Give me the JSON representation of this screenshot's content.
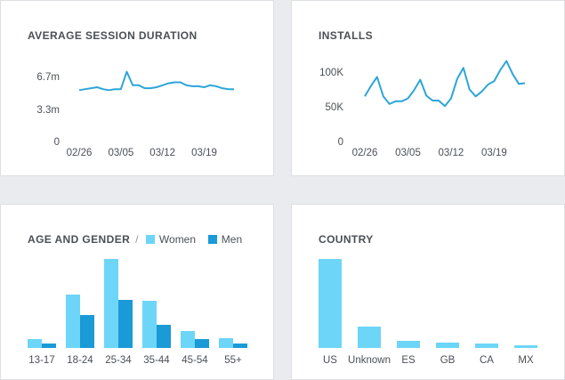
{
  "colors": {
    "line": "#2da5d8",
    "women": "#6dd5f8",
    "men": "#1a9ad6"
  },
  "chart_data": [
    {
      "id": "session",
      "type": "line",
      "title": "AVERAGE SESSION DURATION",
      "y_tick_labels": [
        "6.7m",
        "3.3m",
        "0"
      ],
      "y_ticks": [
        6.7,
        3.3,
        0
      ],
      "ylim": [
        0,
        6.7
      ],
      "x_tick_labels": [
        "02/26",
        "03/05",
        "03/12",
        "03/19"
      ],
      "x_tick_index": [
        0,
        7,
        14,
        21
      ],
      "values": [
        5.3,
        5.4,
        5.5,
        5.6,
        5.4,
        5.3,
        5.4,
        5.4,
        7.2,
        5.8,
        5.8,
        5.5,
        5.5,
        5.6,
        5.8,
        6.0,
        6.1,
        6.1,
        5.8,
        5.7,
        5.7,
        5.6,
        5.8,
        5.7,
        5.5,
        5.4,
        5.4
      ]
    },
    {
      "id": "installs",
      "type": "line",
      "title": "INSTALLS",
      "y_tick_labels": [
        "100K",
        "50K",
        "0"
      ],
      "y_ticks": [
        100000,
        50000,
        0
      ],
      "ylim": [
        0,
        100000
      ],
      "x_tick_labels": [
        "02/26",
        "03/05",
        "03/12",
        "03/19"
      ],
      "x_tick_index": [
        0,
        7,
        14,
        21
      ],
      "values": [
        65000,
        80000,
        93000,
        65000,
        54000,
        58000,
        58000,
        62000,
        74000,
        89000,
        66000,
        59000,
        59000,
        51000,
        62000,
        90000,
        106000,
        75000,
        65000,
        72000,
        82000,
        87000,
        103000,
        116000,
        97000,
        83000,
        84000
      ]
    },
    {
      "id": "age",
      "type": "bar",
      "title": "AGE AND GENDER",
      "categories": [
        "13-17",
        "18-24",
        "25-34",
        "35-44",
        "45-54",
        "55+"
      ],
      "ylim": [
        0,
        100
      ],
      "series": [
        {
          "name": "Women",
          "values": [
            10,
            60,
            100,
            53,
            19,
            11
          ]
        },
        {
          "name": "Men",
          "values": [
            5,
            37,
            54,
            26,
            10,
            5
          ]
        }
      ]
    },
    {
      "id": "country",
      "type": "bar",
      "title": "COUNTRY",
      "categories": [
        "US",
        "Unknown",
        "ES",
        "GB",
        "CA",
        "MX"
      ],
      "ylim": [
        0,
        100
      ],
      "values": [
        100,
        24,
        8,
        6,
        5,
        3
      ]
    }
  ]
}
